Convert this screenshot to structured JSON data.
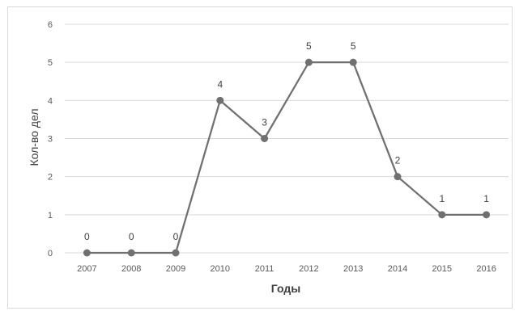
{
  "chart_data": {
    "type": "line",
    "categories": [
      "2007",
      "2008",
      "2009",
      "2010",
      "2011",
      "2012",
      "2013",
      "2014",
      "2015",
      "2016"
    ],
    "series": [
      {
        "values": [
          0,
          0,
          0,
          4,
          3,
          5,
          5,
          2,
          1,
          1
        ]
      }
    ],
    "data_labels": [
      "0",
      "0",
      "0",
      "4",
      "3",
      "5",
      "5",
      "2",
      "1",
      "1"
    ],
    "xlabel": "Годы",
    "ylabel": "Кол-во дел",
    "ylim": [
      0,
      6
    ],
    "yticks": [
      "0",
      "1",
      "2",
      "3",
      "4",
      "5",
      "6"
    ],
    "grid": true,
    "line_color": "#707070",
    "marker_color": "#707070",
    "grid_color": "#d9d9d9"
  }
}
